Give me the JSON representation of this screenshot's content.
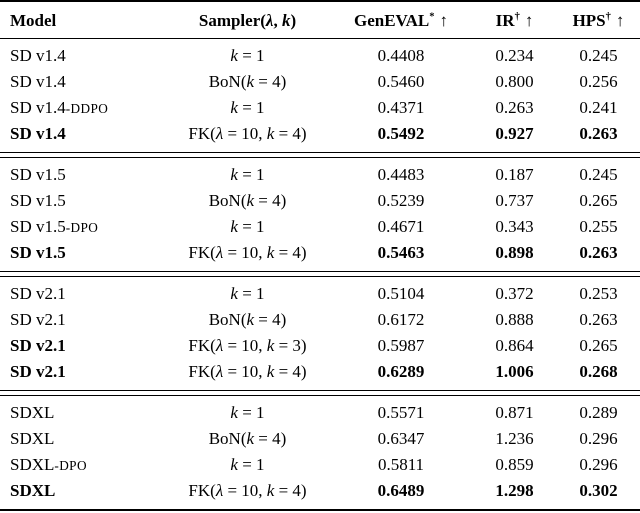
{
  "page": {
    "background_color": "#ffffff",
    "text_color": "#000000",
    "rule_color": "#000000"
  },
  "table": {
    "headers": {
      "model": "Model",
      "sampler": "Sampler(λ, k)",
      "metrics": [
        {
          "label": "GenEVAL",
          "sup": "*",
          "arrow": "↑"
        },
        {
          "label": "IR",
          "sup": "†",
          "arrow": "↑"
        },
        {
          "label": "HPS",
          "sup": "†",
          "arrow": "↑"
        }
      ]
    },
    "blocks": [
      {
        "rows": [
          {
            "model": "SD v1.4",
            "suffix": "",
            "sampler": "k = 1",
            "geneval": "0.4408",
            "ir": "0.234",
            "hps": "0.245",
            "model_bold": false,
            "values_bold": false
          },
          {
            "model": "SD v1.4",
            "suffix": "",
            "sampler": "BoN(k = 4)",
            "geneval": "0.5460",
            "ir": "0.800",
            "hps": "0.256",
            "model_bold": false,
            "values_bold": false
          },
          {
            "model": "SD v1.4",
            "suffix": "-DDPO",
            "sampler": "k = 1",
            "geneval": "0.4371",
            "ir": "0.263",
            "hps": "0.241",
            "model_bold": false,
            "values_bold": false
          },
          {
            "model": "SD v1.4",
            "suffix": "",
            "sampler": "FK(λ = 10, k = 4)",
            "geneval": "0.5492",
            "ir": "0.927",
            "hps": "0.263",
            "model_bold": true,
            "values_bold": true
          }
        ]
      },
      {
        "rows": [
          {
            "model": "SD v1.5",
            "suffix": "",
            "sampler": "k = 1",
            "geneval": "0.4483",
            "ir": "0.187",
            "hps": "0.245",
            "model_bold": false,
            "values_bold": false
          },
          {
            "model": "SD v1.5",
            "suffix": "",
            "sampler": "BoN(k = 4)",
            "geneval": "0.5239",
            "ir": "0.737",
            "hps": "0.265",
            "model_bold": false,
            "values_bold": false
          },
          {
            "model": "SD v1.5",
            "suffix": "-DPO",
            "sampler": "k = 1",
            "geneval": "0.4671",
            "ir": "0.343",
            "hps": "0.255",
            "model_bold": false,
            "values_bold": false
          },
          {
            "model": "SD v1.5",
            "suffix": "",
            "sampler": "FK(λ = 10, k = 4)",
            "geneval": "0.5463",
            "ir": "0.898",
            "hps": "0.263",
            "model_bold": true,
            "values_bold": true
          }
        ]
      },
      {
        "rows": [
          {
            "model": "SD v2.1",
            "suffix": "",
            "sampler": "k = 1",
            "geneval": "0.5104",
            "ir": "0.372",
            "hps": "0.253",
            "model_bold": false,
            "values_bold": false
          },
          {
            "model": "SD v2.1",
            "suffix": "",
            "sampler": "BoN(k = 4)",
            "geneval": "0.6172",
            "ir": "0.888",
            "hps": "0.263",
            "model_bold": false,
            "values_bold": false
          },
          {
            "model": "SD v2.1",
            "suffix": "",
            "sampler": "FK(λ = 10, k = 3)",
            "geneval": "0.5987",
            "ir": "0.864",
            "hps": "0.265",
            "model_bold": true,
            "values_bold": false
          },
          {
            "model": "SD v2.1",
            "suffix": "",
            "sampler": "FK(λ = 10, k = 4)",
            "geneval": "0.6289",
            "ir": "1.006",
            "hps": "0.268",
            "model_bold": true,
            "values_bold": true
          }
        ]
      },
      {
        "rows": [
          {
            "model": "SDXL",
            "suffix": "",
            "sampler": "k = 1",
            "geneval": "0.5571",
            "ir": "0.871",
            "hps": "0.289",
            "model_bold": false,
            "values_bold": false
          },
          {
            "model": "SDXL",
            "suffix": "",
            "sampler": "BoN(k = 4)",
            "geneval": "0.6347",
            "ir": "1.236",
            "hps": "0.296",
            "model_bold": false,
            "values_bold": false
          },
          {
            "model": "SDXL",
            "suffix": "-DPO",
            "sampler": "k = 1",
            "geneval": "0.5811",
            "ir": "0.859",
            "hps": "0.296",
            "model_bold": false,
            "values_bold": false
          },
          {
            "model": "SDXL",
            "suffix": "",
            "sampler": "FK(λ = 10, k = 4)",
            "geneval": "0.6489",
            "ir": "1.298",
            "hps": "0.302",
            "model_bold": true,
            "values_bold": true
          }
        ]
      }
    ]
  },
  "chart_data": {
    "type": "table",
    "title": "",
    "columns": [
      "Model",
      "Sampler(λ, k)",
      "GenEVAL* ↑",
      "IR† ↑",
      "HPS† ↑"
    ],
    "rows": [
      [
        "SD v1.4",
        "k = 1",
        0.4408,
        0.234,
        0.245
      ],
      [
        "SD v1.4",
        "BoN(k = 4)",
        0.546,
        0.8,
        0.256
      ],
      [
        "SD v1.4-DDPO",
        "k = 1",
        0.4371,
        0.263,
        0.241
      ],
      [
        "SD v1.4",
        "FK(λ = 10, k = 4)",
        0.5492,
        0.927,
        0.263
      ],
      [
        "SD v1.5",
        "k = 1",
        0.4483,
        0.187,
        0.245
      ],
      [
        "SD v1.5",
        "BoN(k = 4)",
        0.5239,
        0.737,
        0.265
      ],
      [
        "SD v1.5-DPO",
        "k = 1",
        0.4671,
        0.343,
        0.255
      ],
      [
        "SD v1.5",
        "FK(λ = 10, k = 4)",
        0.5463,
        0.898,
        0.263
      ],
      [
        "SD v2.1",
        "k = 1",
        0.5104,
        0.372,
        0.253
      ],
      [
        "SD v2.1",
        "BoN(k = 4)",
        0.6172,
        0.888,
        0.263
      ],
      [
        "SD v2.1",
        "FK(λ = 10, k = 3)",
        0.5987,
        0.864,
        0.265
      ],
      [
        "SD v2.1",
        "FK(λ = 10, k = 4)",
        0.6289,
        1.006,
        0.268
      ],
      [
        "SDXL",
        "k = 1",
        0.5571,
        0.871,
        0.289
      ],
      [
        "SDXL",
        "BoN(k = 4)",
        0.6347,
        1.236,
        0.296
      ],
      [
        "SDXL-DPO",
        "k = 1",
        0.5811,
        0.859,
        0.296
      ],
      [
        "SDXL",
        "FK(λ = 10, k = 4)",
        0.6489,
        1.298,
        0.302
      ]
    ]
  }
}
